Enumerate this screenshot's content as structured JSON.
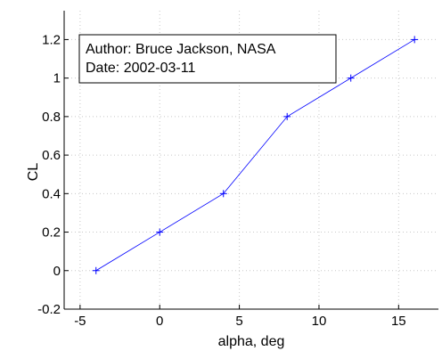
{
  "chart_data": {
    "type": "line",
    "title": "",
    "xlabel": "alpha, deg",
    "ylabel": "CL",
    "xlim": [
      -6,
      17.5
    ],
    "ylim": [
      -0.2,
      1.35
    ],
    "x_ticks": [
      -5,
      0,
      5,
      10,
      15
    ],
    "y_ticks": [
      -0.2,
      0,
      0.2,
      0.4,
      0.6,
      0.8,
      1,
      1.2
    ],
    "x_tick_labels": [
      "-5",
      "0",
      "5",
      "10",
      "15"
    ],
    "y_tick_labels": [
      "-0.2",
      "0",
      "0.2",
      "0.4",
      "0.6",
      "0.8",
      "1",
      "1.2"
    ],
    "grid": true,
    "series": [
      {
        "x": [
          -4,
          0,
          4,
          8,
          12,
          16
        ],
        "y": [
          0,
          0.2,
          0.4,
          0.8,
          1.0,
          1.2
        ],
        "color": "#0000ff",
        "marker": "+"
      }
    ],
    "annotation": {
      "lines": [
        "Author: Bruce Jackson, NASA",
        "Date: 2002-03-11"
      ]
    }
  }
}
